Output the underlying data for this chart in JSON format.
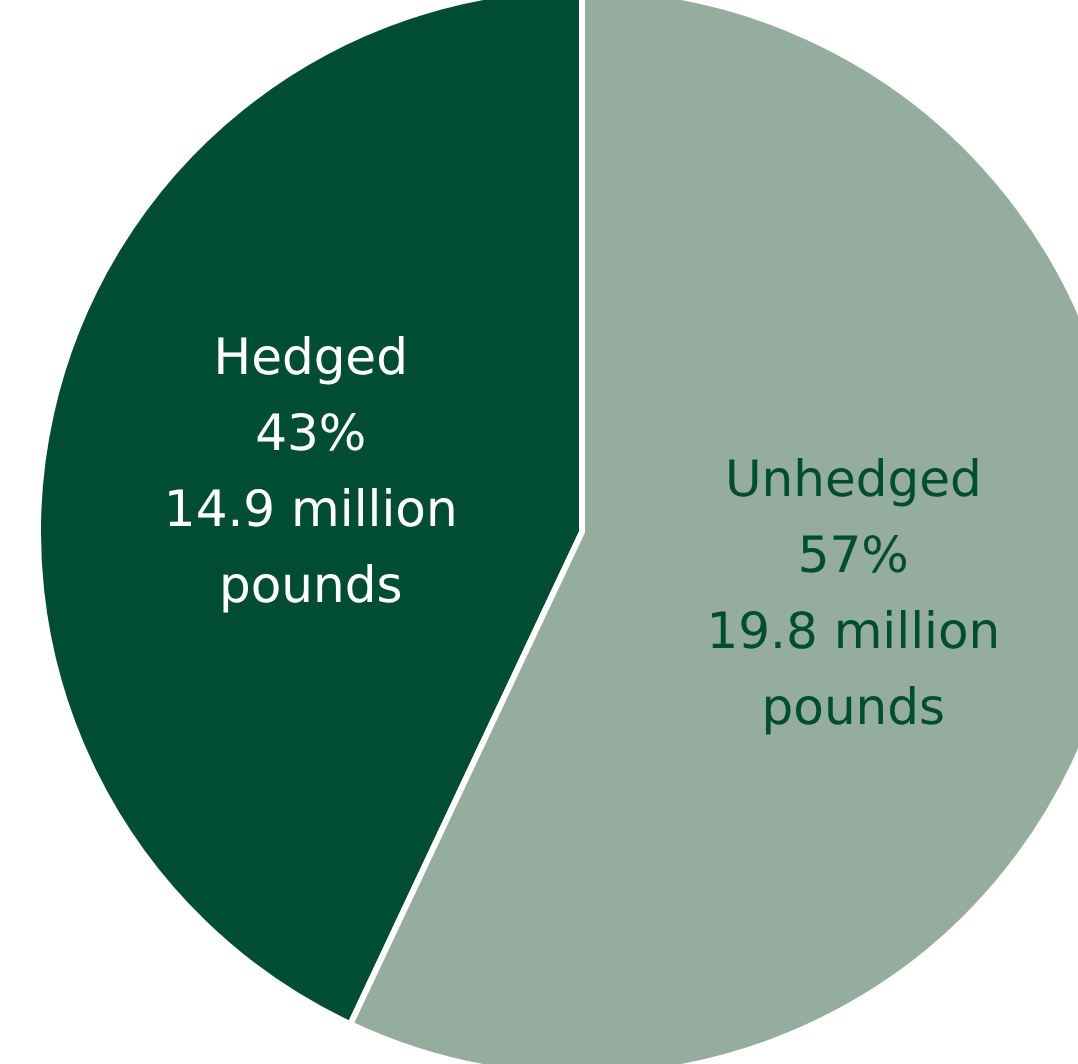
{
  "chart_data": {
    "type": "pie",
    "categories": [
      "Hedged",
      "Unhedged"
    ],
    "values": [
      43,
      57
    ],
    "colors": [
      "#004d33",
      "#94ad9f"
    ],
    "value_labels": [
      "43%\n14.9 million\npounds",
      "57%\n19.8 million\npounds"
    ],
    "legend": false
  }
}
